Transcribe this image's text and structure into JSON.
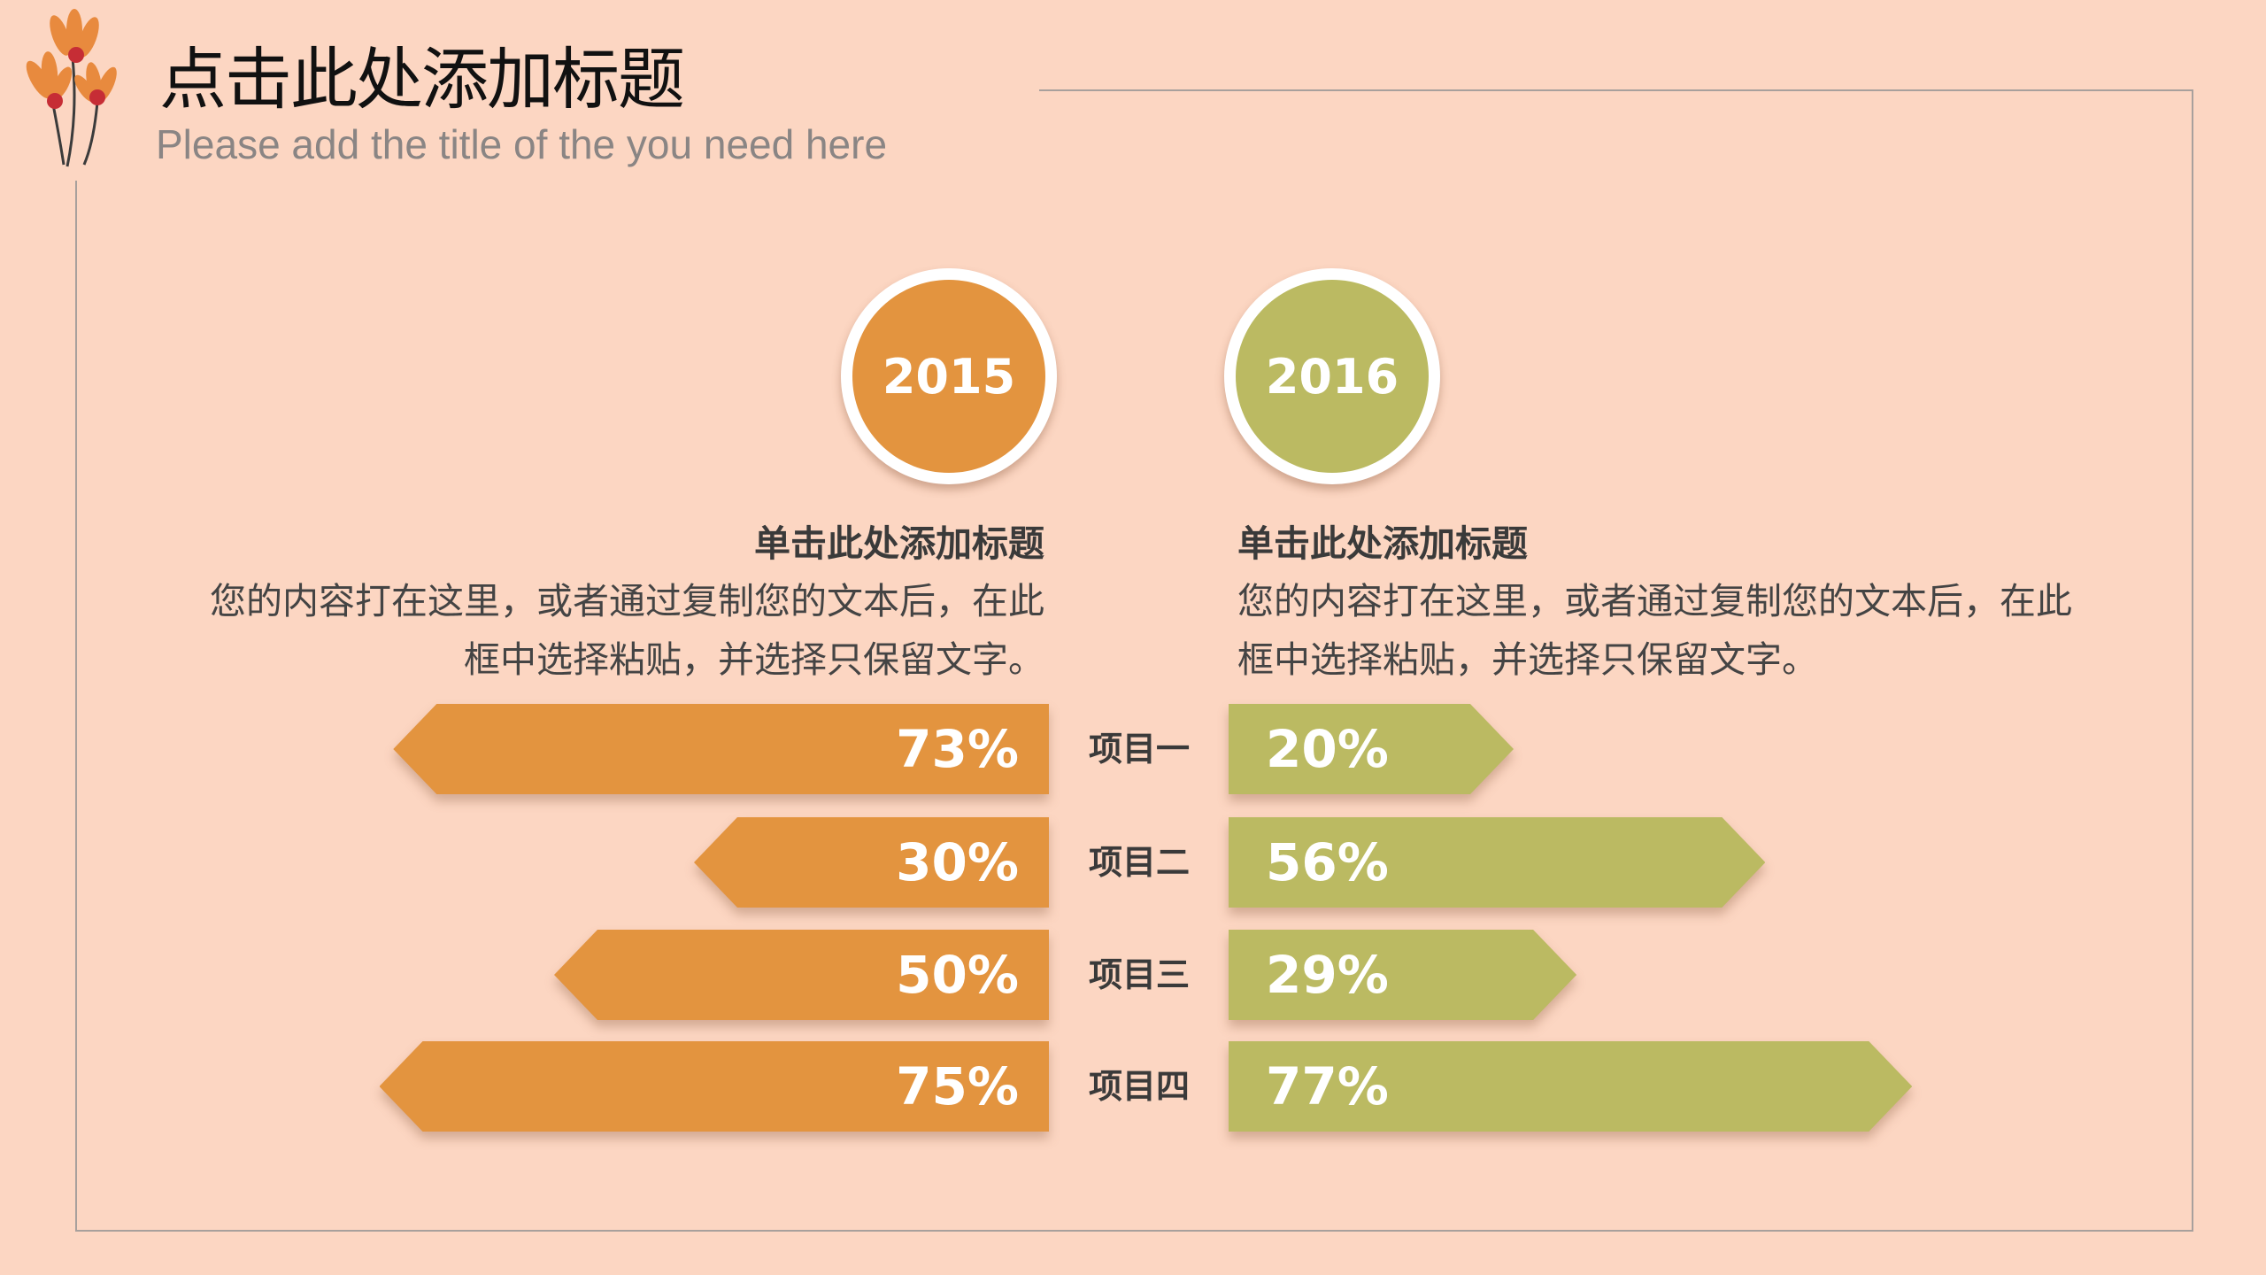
{
  "header": {
    "title": "点击此处添加标题",
    "subtitle": "Please add the title of the you need here"
  },
  "colors": {
    "background": "#fcd6c2",
    "y2015": "#e3943f",
    "y2016": "#bbba62"
  },
  "columns": [
    {
      "year": "2015",
      "heading": "单击此处添加标题",
      "body_line1": "您的内容打在这里，或者通过复制您的文本后，在此",
      "body_line2": "框中选择粘贴，并选择只保留文字。"
    },
    {
      "year": "2016",
      "heading": "单击此处添加标题",
      "body_line1": "您的内容打在这里，或者通过复制您的文本后，在此",
      "body_line2": "框中选择粘贴，并选择只保留文字。"
    }
  ],
  "chart_data": {
    "type": "bar",
    "categories": [
      "项目一",
      "项目二",
      "项目三",
      "项目四"
    ],
    "series": [
      {
        "name": "2015",
        "values": [
          73,
          30,
          50,
          75
        ],
        "labels": [
          "73%",
          "30%",
          "50%",
          "75%"
        ]
      },
      {
        "name": "2016",
        "values": [
          20,
          56,
          29,
          77
        ],
        "labels": [
          "20%",
          "56%",
          "29%",
          "77%"
        ]
      }
    ]
  }
}
